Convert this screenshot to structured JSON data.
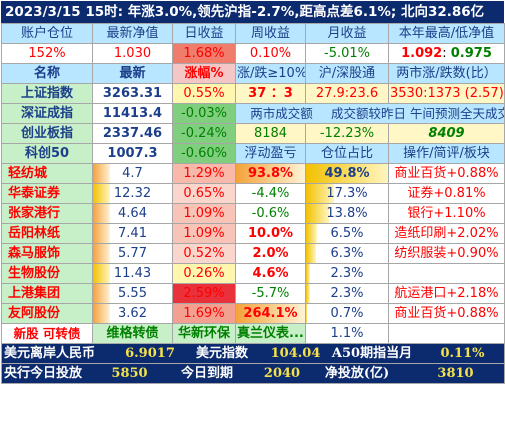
{
  "banner": "2023/3/15  15时: 年涨3.0%,领先沪指-2.7%,距高点差6.1%; 北向32.86亿",
  "account_header": [
    "账户仓位",
    "最新净值",
    "日收益",
    "周收益",
    "月收益",
    "本年最高/低净值"
  ],
  "account_values": {
    "position": "152%",
    "nav": "1.030",
    "day": "1.68%",
    "week": "0.10%",
    "month": "-5.01%",
    "year_high": "1.092",
    "year_sep": ": ",
    "year_low": "0.975"
  },
  "index_header": [
    "名称",
    "最新",
    "涨幅%",
    "涨/跌≥10%",
    "沪/深股通",
    "两市涨/跌数(比）"
  ],
  "indices": [
    {
      "name": "上证指数",
      "last": "3263.31",
      "chg": "0.55%",
      "c4": "37 ：3",
      "c5": "27.9:23.6",
      "c6": "3530:1373 (2.57)"
    },
    {
      "name": "深证成指",
      "last": "11413.4",
      "chg": "-0.03%",
      "merged": [
        "两市成交额",
        "成交额较昨日",
        "午间预测全天成交额"
      ]
    },
    {
      "name": "创业板指",
      "last": "2337.46",
      "chg": "-0.24%",
      "c4": "8184",
      "c5": "-12.23%",
      "c6": "8409"
    },
    {
      "name": "科创50",
      "last": "1007.3",
      "chg": "-0.60%",
      "c4": "浮动盈亏",
      "c5": "仓位占比",
      "c6": "操作/简评/板块"
    }
  ],
  "holdings": [
    {
      "name": "轻纺城",
      "last": "4.7",
      "chg": "1.29%",
      "pnl": "93.8%",
      "pos": "49.8%",
      "note": "商业百货+0.88%"
    },
    {
      "name": "华泰证券",
      "last": "12.32",
      "chg": "0.65%",
      "pnl": "-4.4%",
      "pos": "17.3%",
      "note": "证券+0.81%"
    },
    {
      "name": "张家港行",
      "last": "4.64",
      "chg": "1.09%",
      "pnl": "-0.6%",
      "pos": "13.8%",
      "note": "银行+1.10%"
    },
    {
      "name": "岳阳林纸",
      "last": "7.41",
      "chg": "1.09%",
      "pnl": "10.0%",
      "pos": "6.5%",
      "note": "造纸印刷+2.02%"
    },
    {
      "name": "森马服饰",
      "last": "5.77",
      "chg": "0.52%",
      "pnl": "2.0%",
      "pos": "6.3%",
      "note": "纺织服装+0.90%"
    },
    {
      "name": "生物股份",
      "last": "11.43",
      "chg": "0.26%",
      "pnl": "4.6%",
      "pos": "2.3%",
      "note": ""
    },
    {
      "name": "上港集团",
      "last": "5.55",
      "chg": "2.59%",
      "pnl": "-5.7%",
      "pos": "2.3%",
      "note": "航运港口+2.18%"
    },
    {
      "name": "友阿股份",
      "last": "3.62",
      "chg": "1.69%",
      "pnl": "264.1%",
      "pos": "0.7%",
      "note": "商业百货+0.88%"
    }
  ],
  "convert_row": {
    "label": "新股 可转债",
    "b1": "维格转债",
    "b2": "华新环保",
    "b3": "真兰仪表...",
    "pos": "1.1%"
  },
  "footer": [
    {
      "k1": "美元离岸人民币",
      "v1": "6.9017",
      "k2": "美元指数",
      "v2": "104.04",
      "k3": "A50期指当月",
      "v3": "0.11%"
    },
    {
      "k1": "央行今日投放",
      "v1": "5850",
      "k2": "今日到期",
      "v2": "2040",
      "k3": "净投放(亿)",
      "v3": "3810"
    }
  ],
  "colors": {
    "banner_bg": "#0c2a6e",
    "header_bg": "#b8e5ff",
    "up": "#ff0000",
    "down": "#008000"
  }
}
